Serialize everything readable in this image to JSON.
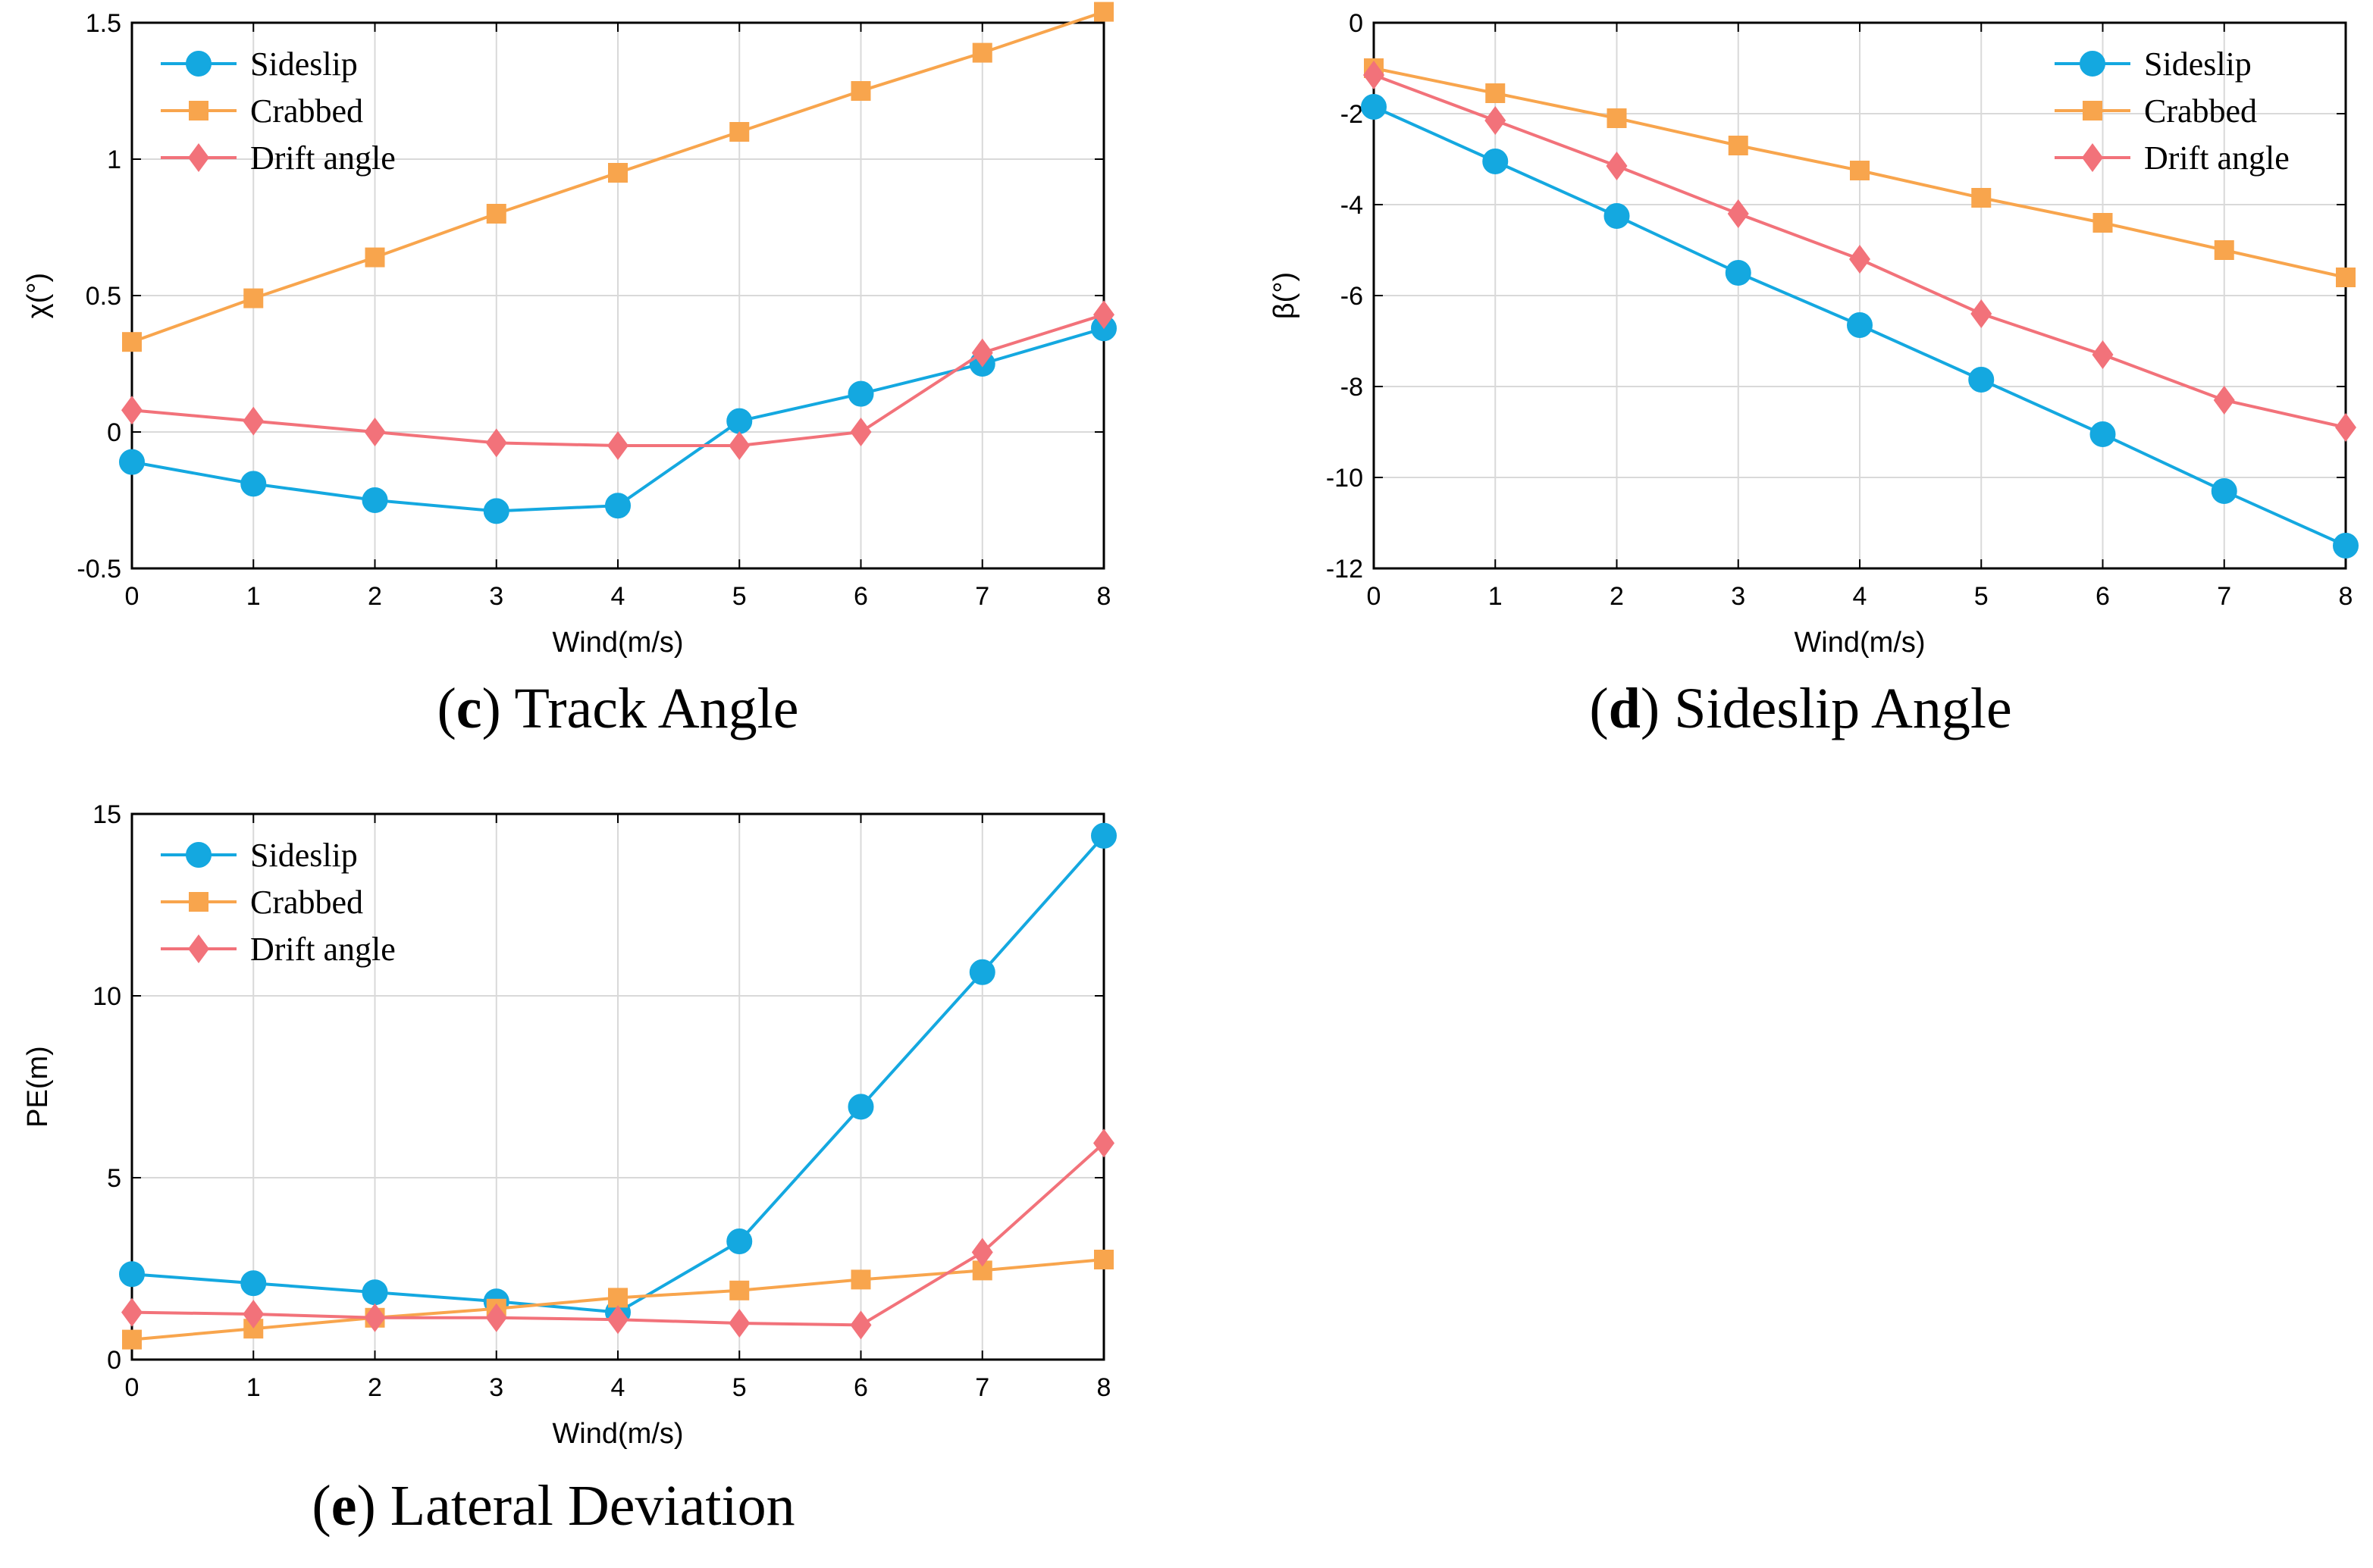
{
  "chart_data": [
    {
      "type": "line",
      "id": "c",
      "caption_letter": "c",
      "caption_text": "Track Angle",
      "xlabel": "Wind(m/s)",
      "ylabel": "χ(°)",
      "xlim": [
        0,
        8
      ],
      "ylim": [
        -0.5,
        1.5
      ],
      "xticks": [
        0,
        1,
        2,
        3,
        4,
        5,
        6,
        7,
        8
      ],
      "yticks": [
        -0.5,
        0,
        0.5,
        1,
        1.5
      ],
      "ytick_labels": [
        "-0.5",
        "0",
        "0.5",
        "1",
        "1.5"
      ],
      "grid": true,
      "legend_position": "top-left",
      "x": [
        0,
        1,
        2,
        3,
        4,
        5,
        6,
        7,
        8
      ],
      "series": [
        {
          "name": "Sideslip",
          "marker": "circle",
          "color": "#14A8E0",
          "values": [
            -0.11,
            -0.19,
            -0.25,
            -0.29,
            -0.27,
            0.04,
            0.14,
            0.25,
            0.38
          ]
        },
        {
          "name": "Crabbed",
          "marker": "square",
          "color": "#F8A54D",
          "values": [
            0.33,
            0.49,
            0.64,
            0.8,
            0.95,
            1.1,
            1.25,
            1.39,
            1.54
          ]
        },
        {
          "name": "Drift angle",
          "marker": "diamond",
          "color": "#F2727A",
          "values": [
            0.08,
            0.04,
            0.0,
            -0.04,
            -0.05,
            -0.05,
            0.0,
            0.29,
            0.43
          ]
        }
      ]
    },
    {
      "type": "line",
      "id": "d",
      "caption_letter": "d",
      "caption_text": "Sideslip Angle",
      "xlabel": "Wind(m/s)",
      "ylabel": "β(°)",
      "xlim": [
        0,
        8
      ],
      "ylim": [
        -12,
        0
      ],
      "xticks": [
        0,
        1,
        2,
        3,
        4,
        5,
        6,
        7,
        8
      ],
      "yticks": [
        -12,
        -10,
        -8,
        -6,
        -4,
        -2,
        0
      ],
      "ytick_labels": [
        "-12",
        "-10",
        "-8",
        "-6",
        "-4",
        "-2",
        "0"
      ],
      "grid": true,
      "legend_position": "top-right",
      "x": [
        0,
        1,
        2,
        3,
        4,
        5,
        6,
        7,
        8
      ],
      "series": [
        {
          "name": "Sideslip",
          "marker": "circle",
          "color": "#14A8E0",
          "values": [
            -1.85,
            -3.05,
            -4.25,
            -5.5,
            -6.65,
            -7.85,
            -9.05,
            -10.3,
            -11.5
          ]
        },
        {
          "name": "Crabbed",
          "marker": "square",
          "color": "#F8A54D",
          "values": [
            -1.0,
            -1.55,
            -2.1,
            -2.7,
            -3.25,
            -3.85,
            -4.4,
            -5.0,
            -5.6
          ]
        },
        {
          "name": "Drift angle",
          "marker": "diamond",
          "color": "#F2727A",
          "values": [
            -1.15,
            -2.15,
            -3.15,
            -4.2,
            -5.2,
            -6.4,
            -7.3,
            -8.3,
            -8.9
          ]
        }
      ]
    },
    {
      "type": "line",
      "id": "e",
      "caption_letter": "e",
      "caption_text": "Lateral Deviation",
      "xlabel": "Wind(m/s)",
      "ylabel": "PE(m)",
      "xlim": [
        0,
        8
      ],
      "ylim": [
        0,
        15
      ],
      "xticks": [
        0,
        1,
        2,
        3,
        4,
        5,
        6,
        7,
        8
      ],
      "yticks": [
        0,
        5,
        10,
        15
      ],
      "ytick_labels": [
        "0",
        "5",
        "10",
        "15"
      ],
      "grid": true,
      "legend_position": "top-left",
      "x": [
        0,
        1,
        2,
        3,
        4,
        5,
        6,
        7,
        8
      ],
      "series": [
        {
          "name": "Sideslip",
          "marker": "circle",
          "color": "#14A8E0",
          "values": [
            2.35,
            2.1,
            1.85,
            1.6,
            1.3,
            3.25,
            6.95,
            10.65,
            14.4
          ]
        },
        {
          "name": "Crabbed",
          "marker": "square",
          "color": "#F8A54D",
          "values": [
            0.55,
            0.85,
            1.15,
            1.4,
            1.7,
            1.9,
            2.2,
            2.45,
            2.75
          ]
        },
        {
          "name": "Drift angle",
          "marker": "diamond",
          "color": "#F2727A",
          "values": [
            1.3,
            1.25,
            1.15,
            1.15,
            1.1,
            1.0,
            0.95,
            2.95,
            5.95
          ]
        }
      ]
    }
  ]
}
